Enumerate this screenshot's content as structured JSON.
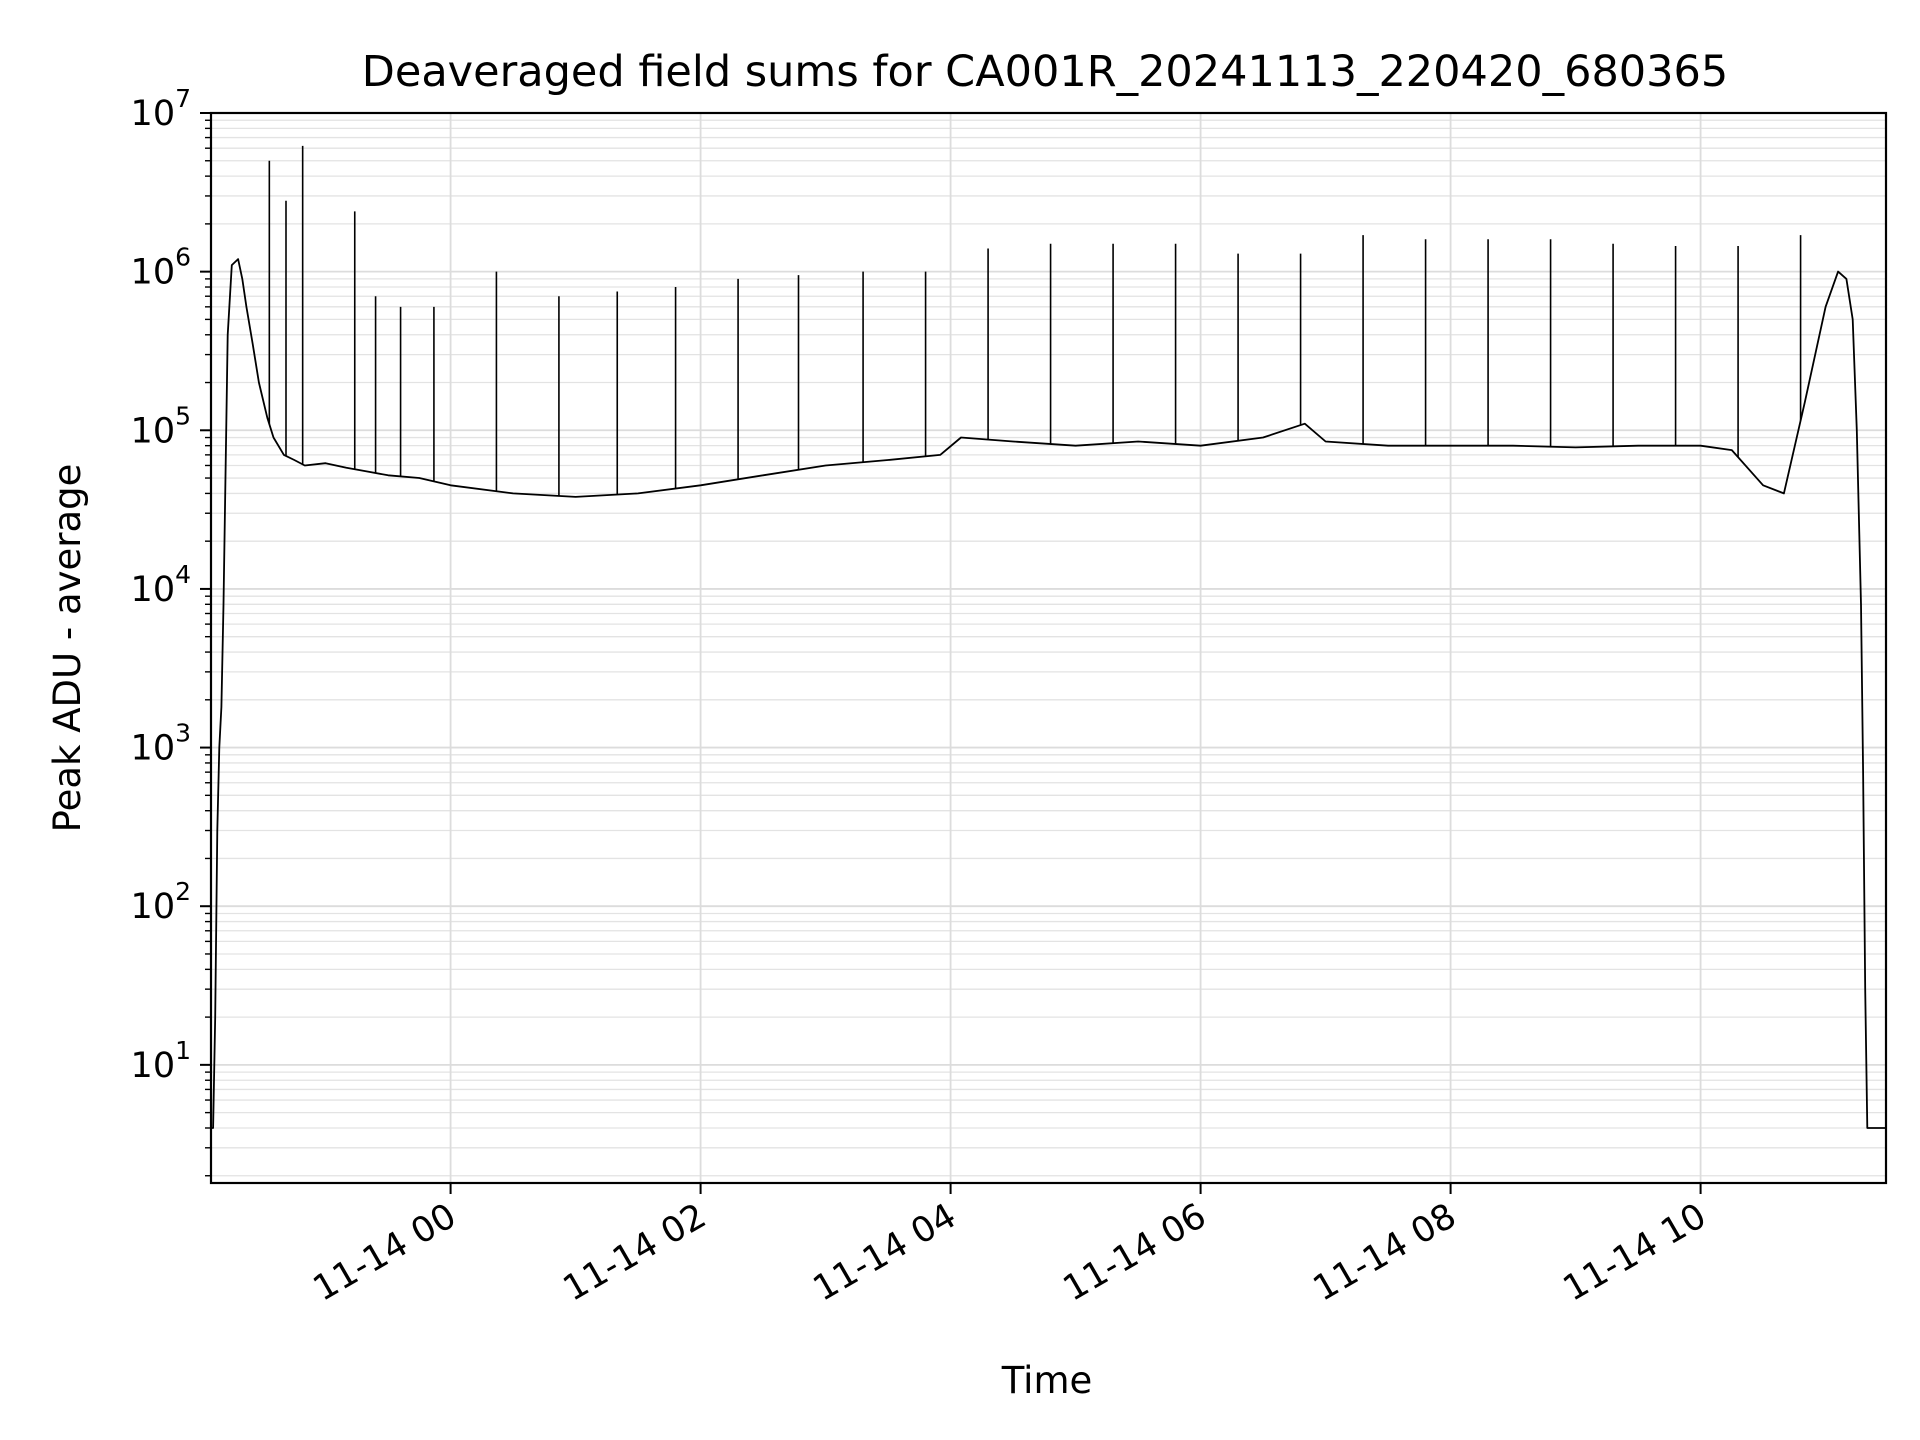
{
  "chart_data": {
    "type": "line",
    "title": "Deaveraged field sums for CA001R_20241113_220420_680365",
    "xlabel": "Time",
    "ylabel": "Peak ADU - average",
    "yscale": "log",
    "ylim": [
      1.8,
      10000000
    ],
    "xlim": [
      "2024-11-13 22:05",
      "2024-11-14 11:29"
    ],
    "grid": true,
    "line_color": "#000000",
    "x_ticks": [
      "2024-11-14 00:00",
      "2024-11-14 02:00",
      "2024-11-14 04:00",
      "2024-11-14 06:00",
      "2024-11-14 08:00",
      "2024-11-14 10:00"
    ],
    "x_tick_labels": [
      "11-14 00",
      "11-14 02",
      "11-14 04",
      "11-14 06",
      "11-14 08",
      "11-14 10"
    ],
    "y_ticks": [
      10,
      100,
      1000,
      10000,
      100000,
      1000000,
      10000000
    ],
    "y_tick_base": [
      "10",
      "10",
      "10",
      "10",
      "10",
      "10",
      "10"
    ],
    "y_tick_exp": [
      "1",
      "2",
      "3",
      "4",
      "5",
      "6",
      "7"
    ],
    "series": [
      {
        "x": [
          "2024-11-13 22:05",
          "2024-11-13 22:06",
          "2024-11-13 22:07",
          "2024-11-13 22:08",
          "2024-11-13 22:09",
          "2024-11-13 22:10",
          "2024-11-13 22:11",
          "2024-11-13 22:13",
          "2024-11-13 22:15",
          "2024-11-13 22:18",
          "2024-11-13 22:20",
          "2024-11-13 22:22",
          "2024-11-13 22:25",
          "2024-11-13 22:28",
          "2024-11-13 22:32",
          "2024-11-13 22:35",
          "2024-11-13 22:40",
          "2024-11-13 22:45",
          "2024-11-13 22:50",
          "2024-11-13 23:00",
          "2024-11-13 23:10",
          "2024-11-13 23:20",
          "2024-11-13 23:30",
          "2024-11-13 23:45",
          "2024-11-14 00:00",
          "2024-11-14 00:30",
          "2024-11-14 01:00",
          "2024-11-14 01:30",
          "2024-11-14 02:00",
          "2024-11-14 02:30",
          "2024-11-14 03:00",
          "2024-11-14 03:30",
          "2024-11-14 03:55",
          "2024-11-14 04:05",
          "2024-11-14 04:30",
          "2024-11-14 05:00",
          "2024-11-14 05:30",
          "2024-11-14 06:00",
          "2024-11-14 06:30",
          "2024-11-14 06:50",
          "2024-11-14 07:00",
          "2024-11-14 07:30",
          "2024-11-14 08:00",
          "2024-11-14 08:30",
          "2024-11-14 09:00",
          "2024-11-14 09:30",
          "2024-11-14 10:00",
          "2024-11-14 10:15",
          "2024-11-14 10:30",
          "2024-11-14 10:40",
          "2024-11-14 10:50",
          "2024-11-14 11:00",
          "2024-11-14 11:06",
          "2024-11-14 11:10",
          "2024-11-14 11:13",
          "2024-11-14 11:15",
          "2024-11-14 11:17",
          "2024-11-14 11:18",
          "2024-11-14 11:19",
          "2024-11-14 11:20",
          "2024-11-14 11:29"
        ],
        "y": [
          4,
          4,
          20,
          300,
          1000,
          1800,
          8000,
          400000,
          1100000,
          1200000,
          900000,
          600000,
          350000,
          200000,
          120000,
          90000,
          70000,
          65000,
          60000,
          62000,
          58000,
          55000,
          52000,
          50000,
          45000,
          40000,
          38000,
          40000,
          45000,
          52000,
          60000,
          65000,
          70000,
          90000,
          85000,
          80000,
          85000,
          80000,
          90000,
          110000,
          85000,
          80000,
          80000,
          80000,
          78000,
          80000,
          80000,
          75000,
          45000,
          40000,
          150000,
          600000,
          1000000,
          900000,
          500000,
          100000,
          8000,
          700,
          30,
          4,
          4
        ]
      }
    ],
    "spikes": {
      "x": [
        "2024-11-13 22:33",
        "2024-11-13 22:41",
        "2024-11-13 22:49",
        "2024-11-13 23:14",
        "2024-11-13 23:24",
        "2024-11-13 23:36",
        "2024-11-13 23:52",
        "2024-11-14 00:22",
        "2024-11-14 00:52",
        "2024-11-14 01:20",
        "2024-11-14 01:48",
        "2024-11-14 02:18",
        "2024-11-14 02:47",
        "2024-11-14 03:18",
        "2024-11-14 03:48",
        "2024-11-14 04:18",
        "2024-11-14 04:48",
        "2024-11-14 05:18",
        "2024-11-14 05:48",
        "2024-11-14 06:18",
        "2024-11-14 06:48",
        "2024-11-14 07:18",
        "2024-11-14 07:48",
        "2024-11-14 08:18",
        "2024-11-14 08:48",
        "2024-11-14 09:18",
        "2024-11-14 09:48",
        "2024-11-14 10:18",
        "2024-11-14 10:48"
      ],
      "y": [
        5000000,
        2800000,
        6200000,
        2400000,
        700000,
        600000,
        600000,
        1000000,
        700000,
        750000,
        800000,
        900000,
        950000,
        1000000,
        1000000,
        1400000,
        1500000,
        1500000,
        1500000,
        1300000,
        1300000,
        1700000,
        1600000,
        1600000,
        1600000,
        1500000,
        1450000,
        1450000,
        1700000
      ]
    }
  }
}
